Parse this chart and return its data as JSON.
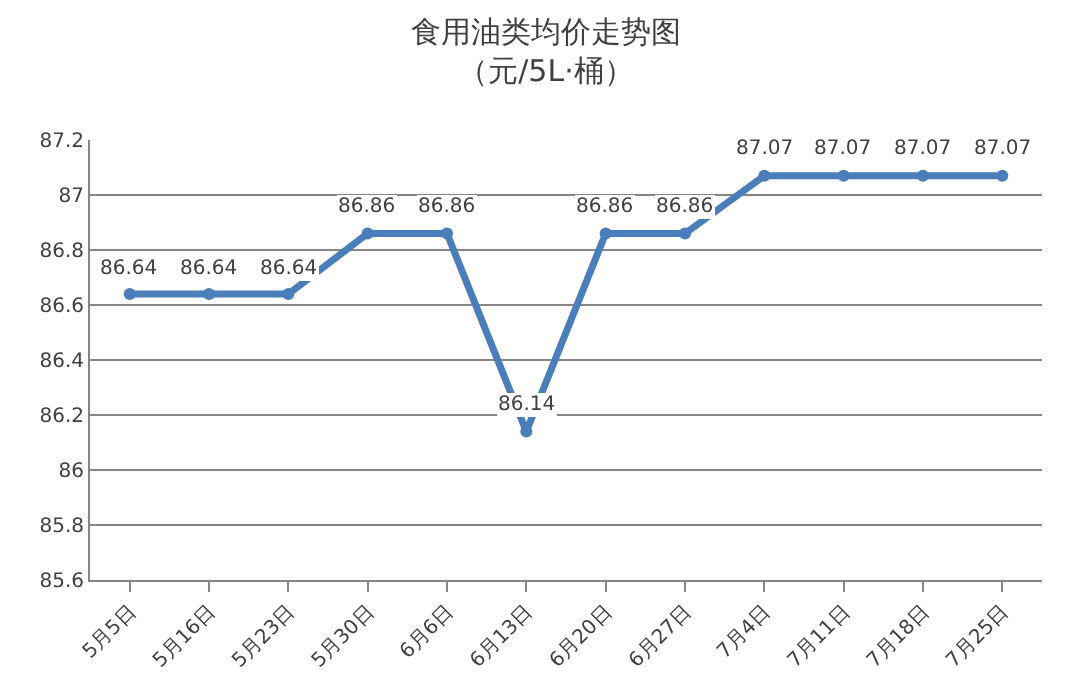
{
  "chart_data": {
    "type": "line",
    "title": "食用油类均价走势图",
    "subtitle": "（元/5L·桶）",
    "categories": [
      "5月5日",
      "5月16日",
      "5月23日",
      "5月30日",
      "6月6日",
      "6月13日",
      "6月20日",
      "6月27日",
      "7月4日",
      "7月11日",
      "7月18日",
      "7月25日"
    ],
    "series": [
      {
        "color": "#4a7ebb",
        "values": [
          86.64,
          86.64,
          86.64,
          86.86,
          86.86,
          86.14,
          86.86,
          86.86,
          87.07,
          87.07,
          87.07,
          87.07
        ]
      }
    ],
    "ylim": [
      85.6,
      87.2
    ],
    "yticks": [
      85.6,
      85.8,
      86,
      86.2,
      86.4,
      86.6,
      86.8,
      87,
      87.2
    ],
    "grid": "y",
    "data_labels": true,
    "marker": "circle",
    "line_style": "solid"
  }
}
